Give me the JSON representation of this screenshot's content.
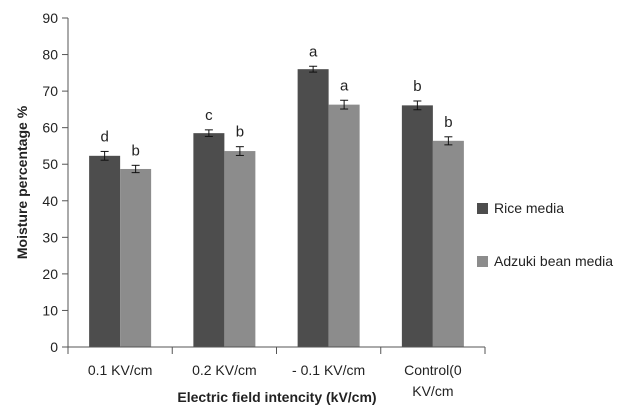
{
  "chart_data": {
    "type": "bar",
    "title": "",
    "xlabel": "Electric field intencity (kV/cm)",
    "ylabel": "Moisture percentage %",
    "ylim": [
      0,
      90
    ],
    "yticks": [
      0,
      10,
      20,
      30,
      40,
      50,
      60,
      70,
      80,
      90
    ],
    "grid": false,
    "legend_position": "right",
    "categories": [
      [
        "0.1 KV/cm"
      ],
      [
        "0.2 KV/cm"
      ],
      [
        "- 0.1 KV/cm"
      ],
      [
        "Control(0",
        "KV/cm"
      ]
    ],
    "series": [
      {
        "name": "Rice media",
        "color": "#4d4d4d",
        "values": [
          52.3,
          58.5,
          76.0,
          66.1
        ],
        "errors": [
          1.2,
          0.9,
          0.8,
          1.2
        ],
        "letters": [
          "d",
          "c",
          "a",
          "b"
        ]
      },
      {
        "name": "Adzuki bean media",
        "color": "#8c8c8c",
        "values": [
          48.7,
          53.6,
          66.3,
          56.4
        ],
        "errors": [
          1.0,
          1.2,
          1.2,
          1.1
        ],
        "letters": [
          "b",
          "b",
          "a",
          "b"
        ]
      }
    ]
  }
}
